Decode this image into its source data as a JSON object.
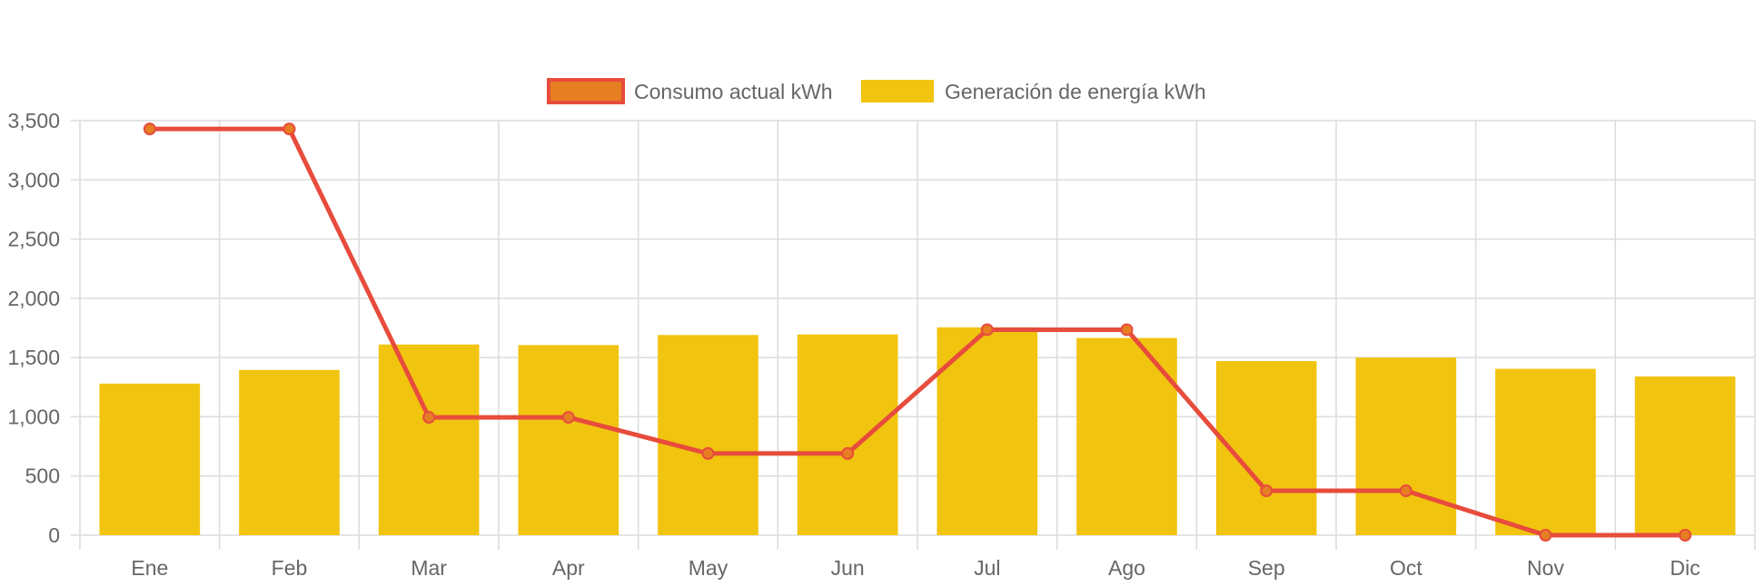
{
  "colors": {
    "bar_fill": "#f1c40f",
    "line_stroke": "#e74c3c",
    "point_fill": "#e67e22",
    "legend_line_fill": "#e67e22",
    "grid": "#dcdcdc",
    "axis_text": "#666666"
  },
  "chart_data": {
    "type": "bar",
    "categories": [
      "Ene",
      "Feb",
      "Mar",
      "Apr",
      "May",
      "Jun",
      "Jul",
      "Ago",
      "Sep",
      "Oct",
      "Nov",
      "Dic"
    ],
    "series": [
      {
        "name": "Consumo actual kWh",
        "kind": "line",
        "values": [
          3430,
          3430,
          995,
          995,
          690,
          690,
          1735,
          1735,
          375,
          375,
          0,
          0
        ]
      },
      {
        "name": "Generación de energía kWh",
        "kind": "bar",
        "values": [
          1280,
          1395,
          1610,
          1605,
          1690,
          1695,
          1755,
          1665,
          1470,
          1500,
          1405,
          1340
        ]
      }
    ],
    "y_ticks": [
      "0",
      "500",
      "1,000",
      "1,500",
      "2,000",
      "2,500",
      "3,000",
      "3,500"
    ],
    "ylim": [
      0,
      3500
    ],
    "grid": true,
    "legend_position": "top-center"
  }
}
